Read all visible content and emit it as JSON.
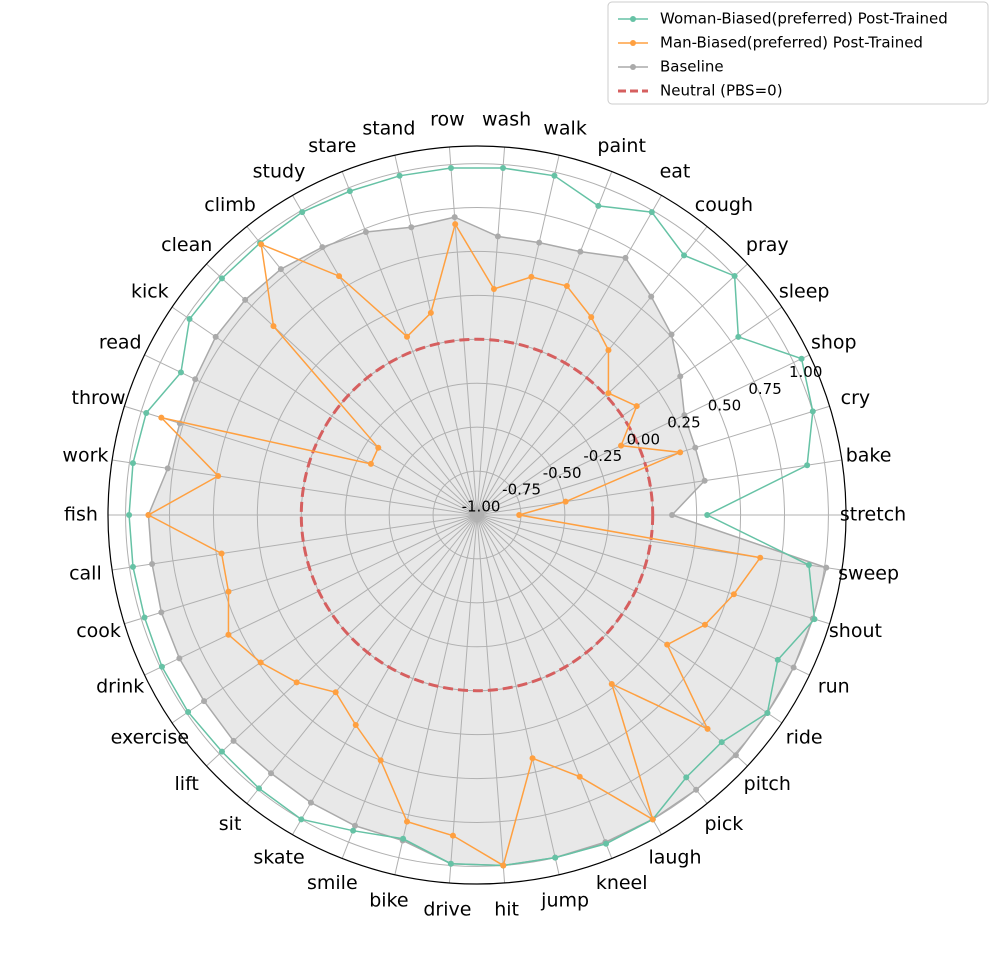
{
  "chart_data": {
    "type": "radar",
    "categories": [
      "stretch",
      "bake",
      "cry",
      "shop",
      "sleep",
      "pray",
      "cough",
      "eat",
      "paint",
      "walk",
      "wash",
      "row",
      "stand",
      "stare",
      "study",
      "climb",
      "clean",
      "kick",
      "read",
      "throw",
      "work",
      "fish",
      "call",
      "cook",
      "drink",
      "exercise",
      "lift",
      "sit",
      "skate",
      "smile",
      "bike",
      "drive",
      "hit",
      "jump",
      "kneel",
      "laugh",
      "pick",
      "pitch",
      "ride",
      "run",
      "shout",
      "sweep"
    ],
    "series": [
      {
        "name": "Woman-Biased(preferred) Post-Trained",
        "color": "#66c2a5",
        "values": [
          0.31,
          0.9,
          1.0,
          1.05,
          0.8,
          1.0,
          0.89,
          0.99,
          0.89,
          0.98,
          0.98,
          0.98,
          0.98,
          0.98,
          0.99,
          0.98,
          0.98,
          0.98,
          0.87,
          0.97,
          0.98,
          0.98,
          0.98,
          0.98,
          0.99,
          0.99,
          0.98,
          0.99,
          1.0,
          0.93,
          0.89,
          0.99,
          1.0,
          1.0,
          1.01,
          1.0,
          0.91,
          0.9,
          1.0,
          0.9,
          1.01,
          0.91
        ]
      },
      {
        "name": "Man-Biased(preferred) Post-Trained",
        "color": "#ffa040",
        "values": [
          -0.76,
          -0.49,
          0.21,
          -0.09,
          0.1,
          0.02,
          0.2,
          0.3,
          0.4,
          0.39,
          0.29,
          0.66,
          0.18,
          0.09,
          0.57,
          0.97,
          0.58,
          -0.32,
          -0.33,
          0.88,
          0.49,
          0.87,
          0.47,
          0.48,
          0.57,
          0.49,
          0.4,
          0.29,
          0.38,
          0.5,
          0.79,
          0.83,
          1.0,
          0.42,
          0.6,
          1.0,
          0.23,
          0.79,
          0.31,
          0.44,
          0.53,
          0.63
        ]
      },
      {
        "name": "Baseline",
        "color": "#aaaaaa",
        "fill": "#e8e8e8",
        "values": [
          0.11,
          0.31,
          0.3,
          0.31,
          0.4,
          0.51,
          0.59,
          0.69,
          0.61,
          0.59,
          0.59,
          0.7,
          0.68,
          0.73,
          0.76,
          0.79,
          0.8,
          0.8,
          0.78,
          0.77,
          0.78,
          0.87,
          0.87,
          0.88,
          0.88,
          0.88,
          0.89,
          0.88,
          0.89,
          0.9,
          0.9,
          0.99,
          1.0,
          1.0,
          1.0,
          1.0,
          1.0,
          1.01,
          1.0,
          1.0,
          1.0,
          1.01
        ]
      }
    ],
    "reference_line": {
      "name": "Neutral (PBS=0)",
      "value": 0,
      "color": "#d65f5f"
    },
    "ylim": [
      -1,
      1.1
    ],
    "yticks": [
      {
        "value": -1,
        "label": "-1.00"
      },
      {
        "value": -0.75,
        "label": "-0.75"
      },
      {
        "value": -0.5,
        "label": "-0.50"
      },
      {
        "value": -0.25,
        "label": "-0.25"
      },
      {
        "value": 0,
        "label": "0.00"
      },
      {
        "value": 0.25,
        "label": "0.25"
      },
      {
        "value": 0.5,
        "label": "0.50"
      },
      {
        "value": 0.75,
        "label": "0.75"
      },
      {
        "value": 1,
        "label": "1.00"
      }
    ],
    "grid": true,
    "legend": "upper right"
  }
}
